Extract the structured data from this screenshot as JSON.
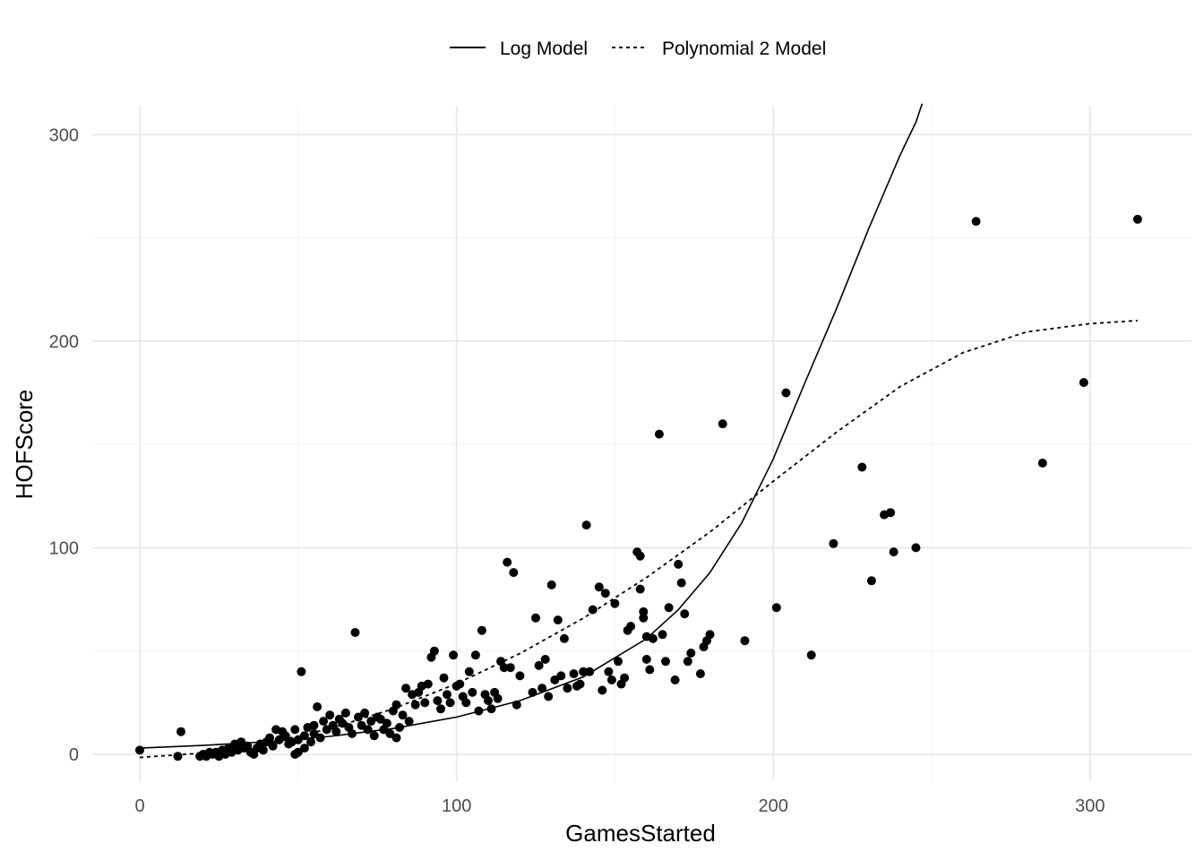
{
  "chart_data": {
    "type": "scatter",
    "title": "",
    "xlabel": "GamesStarted",
    "ylabel": "HOFScore",
    "xlim": [
      -15,
      332
    ],
    "ylim": [
      -13,
      314
    ],
    "x_ticks": [
      0,
      100,
      200,
      300
    ],
    "y_ticks": [
      0,
      100,
      200,
      300
    ],
    "x_tick_labels": [
      "0",
      "100",
      "200",
      "300"
    ],
    "y_tick_labels": [
      "0",
      "100",
      "200",
      "300"
    ],
    "grid": true,
    "legend_position": "top",
    "legend": [
      {
        "name": "Log Model",
        "line_style": "solid"
      },
      {
        "name": "Polynomial 2 Model",
        "line_style": "dashed"
      }
    ],
    "points": [
      [
        0,
        2
      ],
      [
        12,
        -1
      ],
      [
        13,
        11
      ],
      [
        19,
        -1
      ],
      [
        20,
        0
      ],
      [
        21,
        -1
      ],
      [
        22,
        1
      ],
      [
        23,
        0
      ],
      [
        24,
        1
      ],
      [
        25,
        -1
      ],
      [
        26,
        2
      ],
      [
        27,
        0
      ],
      [
        28,
        3
      ],
      [
        29,
        1
      ],
      [
        30,
        5
      ],
      [
        31,
        2
      ],
      [
        32,
        6
      ],
      [
        33,
        3
      ],
      [
        34,
        4
      ],
      [
        35,
        1
      ],
      [
        36,
        0
      ],
      [
        37,
        3
      ],
      [
        38,
        5
      ],
      [
        39,
        2
      ],
      [
        40,
        6
      ],
      [
        41,
        8
      ],
      [
        42,
        4
      ],
      [
        43,
        12
      ],
      [
        44,
        7
      ],
      [
        45,
        11
      ],
      [
        46,
        9
      ],
      [
        47,
        5
      ],
      [
        48,
        6
      ],
      [
        49,
        12
      ],
      [
        49,
        0
      ],
      [
        50,
        1
      ],
      [
        50,
        7
      ],
      [
        51,
        40
      ],
      [
        52,
        3
      ],
      [
        52,
        9
      ],
      [
        53,
        13
      ],
      [
        54,
        6
      ],
      [
        55,
        10
      ],
      [
        55,
        14
      ],
      [
        56,
        23
      ],
      [
        57,
        8
      ],
      [
        58,
        16
      ],
      [
        59,
        12
      ],
      [
        60,
        19
      ],
      [
        61,
        14
      ],
      [
        62,
        11
      ],
      [
        63,
        17
      ],
      [
        64,
        15
      ],
      [
        65,
        20
      ],
      [
        66,
        13
      ],
      [
        67,
        10
      ],
      [
        68,
        59
      ],
      [
        69,
        18
      ],
      [
        70,
        14
      ],
      [
        71,
        20
      ],
      [
        72,
        12
      ],
      [
        73,
        16
      ],
      [
        74,
        9
      ],
      [
        75,
        18
      ],
      [
        76,
        17
      ],
      [
        77,
        12
      ],
      [
        78,
        15
      ],
      [
        79,
        10
      ],
      [
        80,
        21
      ],
      [
        81,
        24
      ],
      [
        81,
        8
      ],
      [
        82,
        13
      ],
      [
        83,
        19
      ],
      [
        84,
        32
      ],
      [
        85,
        16
      ],
      [
        86,
        29
      ],
      [
        87,
        24
      ],
      [
        88,
        30
      ],
      [
        89,
        33
      ],
      [
        90,
        25
      ],
      [
        91,
        34
      ],
      [
        92,
        47
      ],
      [
        93,
        50
      ],
      [
        94,
        26
      ],
      [
        95,
        22
      ],
      [
        96,
        37
      ],
      [
        97,
        29
      ],
      [
        98,
        25
      ],
      [
        99,
        48
      ],
      [
        100,
        33
      ],
      [
        101,
        34
      ],
      [
        102,
        28
      ],
      [
        103,
        25
      ],
      [
        104,
        40
      ],
      [
        105,
        30
      ],
      [
        106,
        48
      ],
      [
        107,
        21
      ],
      [
        108,
        60
      ],
      [
        109,
        29
      ],
      [
        110,
        26
      ],
      [
        111,
        22
      ],
      [
        112,
        30
      ],
      [
        113,
        27
      ],
      [
        114,
        45
      ],
      [
        115,
        42
      ],
      [
        116,
        93
      ],
      [
        117,
        42
      ],
      [
        118,
        88
      ],
      [
        119,
        24
      ],
      [
        120,
        38
      ],
      [
        124,
        30
      ],
      [
        125,
        66
      ],
      [
        126,
        43
      ],
      [
        127,
        32
      ],
      [
        128,
        46
      ],
      [
        129,
        28
      ],
      [
        130,
        82
      ],
      [
        131,
        36
      ],
      [
        132,
        65
      ],
      [
        133,
        38
      ],
      [
        134,
        56
      ],
      [
        135,
        32
      ],
      [
        137,
        39
      ],
      [
        138,
        33
      ],
      [
        139,
        34
      ],
      [
        140,
        40
      ],
      [
        141,
        111
      ],
      [
        142,
        40
      ],
      [
        143,
        70
      ],
      [
        145,
        81
      ],
      [
        146,
        31
      ],
      [
        147,
        78
      ],
      [
        148,
        40
      ],
      [
        149,
        36
      ],
      [
        150,
        73
      ],
      [
        151,
        45
      ],
      [
        152,
        34
      ],
      [
        153,
        37
      ],
      [
        154,
        60
      ],
      [
        155,
        62
      ],
      [
        157,
        98
      ],
      [
        158,
        96
      ],
      [
        158,
        80
      ],
      [
        159,
        69
      ],
      [
        159,
        66
      ],
      [
        160,
        57
      ],
      [
        160,
        46
      ],
      [
        161,
        41
      ],
      [
        162,
        56
      ],
      [
        164,
        155
      ],
      [
        165,
        58
      ],
      [
        166,
        45
      ],
      [
        167,
        71
      ],
      [
        169,
        36
      ],
      [
        170,
        92
      ],
      [
        171,
        83
      ],
      [
        172,
        68
      ],
      [
        173,
        45
      ],
      [
        174,
        49
      ],
      [
        177,
        39
      ],
      [
        178,
        52
      ],
      [
        179,
        55
      ],
      [
        180,
        58
      ],
      [
        184,
        160
      ],
      [
        191,
        55
      ],
      [
        201,
        71
      ],
      [
        204,
        175
      ],
      [
        212,
        48
      ],
      [
        219,
        102
      ],
      [
        228,
        139
      ],
      [
        231,
        84
      ],
      [
        235,
        116
      ],
      [
        237,
        117
      ],
      [
        238,
        98
      ],
      [
        245,
        100
      ],
      [
        264,
        258
      ],
      [
        285,
        141
      ],
      [
        298,
        180
      ],
      [
        315,
        259
      ]
    ],
    "log_model_curve": [
      [
        0,
        3.0
      ],
      [
        20,
        4.3
      ],
      [
        40,
        6.1
      ],
      [
        60,
        8.7
      ],
      [
        80,
        12.5
      ],
      [
        100,
        18.0
      ],
      [
        120,
        26.0
      ],
      [
        140,
        37.5
      ],
      [
        160,
        56.0
      ],
      [
        170,
        70.0
      ],
      [
        180,
        88.0
      ],
      [
        190,
        112.0
      ],
      [
        200,
        143.0
      ],
      [
        210,
        180.0
      ],
      [
        220,
        216.0
      ],
      [
        230,
        254.0
      ],
      [
        240,
        290.0
      ],
      [
        245,
        306.0
      ],
      [
        247,
        315.0
      ]
    ],
    "polynomial_2_model_curve": [
      [
        0,
        -1.5
      ],
      [
        20,
        0.6
      ],
      [
        40,
        5.3
      ],
      [
        60,
        12.4
      ],
      [
        80,
        22.0
      ],
      [
        100,
        34.2
      ],
      [
        120,
        48.8
      ],
      [
        140,
        65.9
      ],
      [
        160,
        85.6
      ],
      [
        180,
        107.6
      ],
      [
        200,
        132.2
      ],
      [
        220,
        156.0
      ],
      [
        240,
        178.0
      ],
      [
        260,
        194.5
      ],
      [
        280,
        204.5
      ],
      [
        300,
        208.5
      ],
      [
        315,
        210.0
      ]
    ]
  }
}
